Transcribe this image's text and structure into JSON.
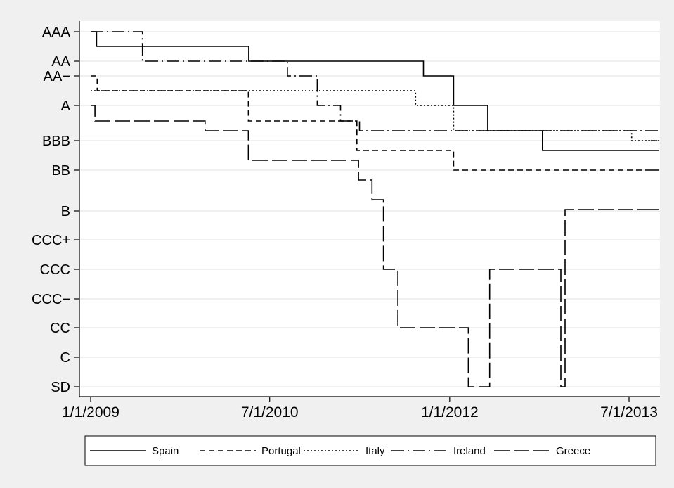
{
  "chart_data": {
    "type": "line",
    "title": "",
    "xlabel": "",
    "ylabel": "",
    "x_ticks": [
      "1/1/2009",
      "7/1/2010",
      "1/1/2012",
      "7/1/2013"
    ],
    "x_range": [
      "2009-01-01",
      "2013-10-01"
    ],
    "y_ticks": [
      "AAA",
      "AA",
      "AA−",
      "A",
      "BBB",
      "BB",
      "B",
      "CCC+",
      "CCC",
      "CCC−",
      "CC",
      "C",
      "SD"
    ],
    "grid": true,
    "legend_position": "bottom",
    "series": [
      {
        "name": "Spain",
        "dash": "solid",
        "points": [
          [
            "2009-01-01",
            "AAA"
          ],
          [
            "2009-01-19",
            "AA+"
          ],
          [
            "2010-04-28",
            "AA"
          ],
          [
            "2011-10-13",
            "AA−"
          ],
          [
            "2012-01-13",
            "A"
          ],
          [
            "2012-04-26",
            "BBB+"
          ],
          [
            "2012-10-10",
            "BBB−"
          ],
          [
            "2013-10-01",
            "BBB−"
          ]
        ]
      },
      {
        "name": "Portugal",
        "dash": "dashed",
        "points": [
          [
            "2009-01-01",
            "AA−"
          ],
          [
            "2009-01-21",
            "A+"
          ],
          [
            "2010-04-27",
            "A−"
          ],
          [
            "2011-03-24",
            "BBB−"
          ],
          [
            "2011-03-29",
            "BBB−"
          ],
          [
            "2012-01-13",
            "BB"
          ],
          [
            "2013-10-01",
            "BB"
          ]
        ]
      },
      {
        "name": "Italy",
        "dash": "dotted",
        "points": [
          [
            "2009-01-01",
            "A+"
          ],
          [
            "2011-09-19",
            "A"
          ],
          [
            "2012-01-13",
            "BBB+"
          ],
          [
            "2013-07-09",
            "BBB"
          ],
          [
            "2013-10-01",
            "BBB"
          ]
        ]
      },
      {
        "name": "Ireland",
        "dash": "dash-dot",
        "points": [
          [
            "2009-01-01",
            "AAA"
          ],
          [
            "2009-03-30",
            "AAA"
          ],
          [
            "2009-06-08",
            "AA"
          ],
          [
            "2010-08-24",
            "AA−"
          ],
          [
            "2010-11-23",
            "A"
          ],
          [
            "2011-02-02",
            "A−"
          ],
          [
            "2011-04-01",
            "BBB+"
          ],
          [
            "2013-10-01",
            "BBB+"
          ]
        ]
      },
      {
        "name": "Greece",
        "dash": "long-dash",
        "points": [
          [
            "2009-01-01",
            "A"
          ],
          [
            "2009-01-14",
            "A−"
          ],
          [
            "2009-12-16",
            "BBB+"
          ],
          [
            "2010-04-27",
            "BB+"
          ],
          [
            "2011-03-29",
            "BB−"
          ],
          [
            "2011-05-09",
            "B"
          ],
          [
            "2011-06-13",
            "CCC"
          ],
          [
            "2011-07-27",
            "CC"
          ],
          [
            "2012-02-27",
            "SD"
          ],
          [
            "2012-05-02",
            "CCC"
          ],
          [
            "2012-12-05",
            "SD"
          ],
          [
            "2012-12-18",
            "B−"
          ],
          [
            "2013-10-01",
            "B−"
          ]
        ]
      }
    ]
  }
}
